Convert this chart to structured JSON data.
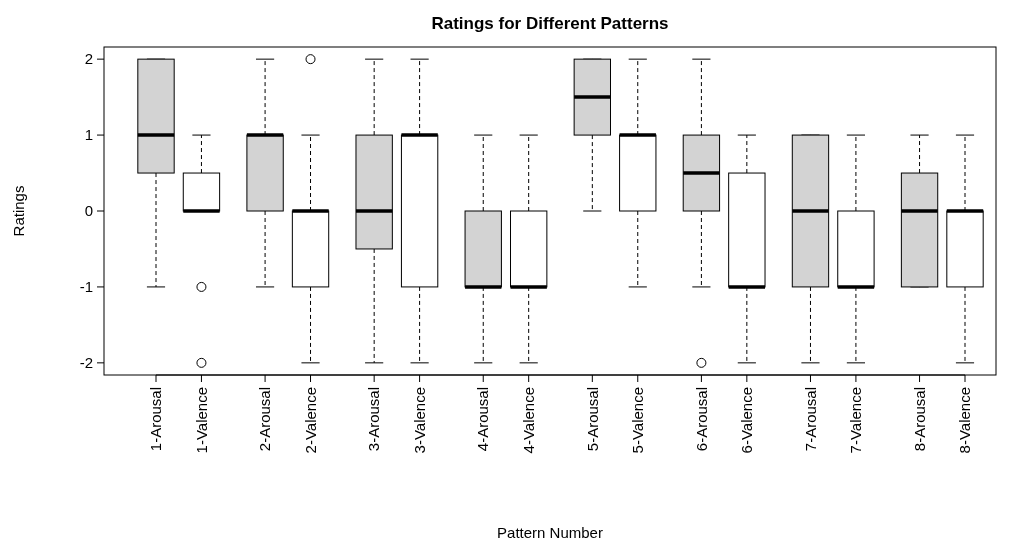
{
  "chart_data": {
    "type": "box",
    "title": "Ratings for Different Patterns",
    "xlabel": "Pattern Number",
    "ylabel": "Ratings",
    "categories": [
      "1-Arousal",
      "1-Valence",
      "2-Arousal",
      "2-Valence",
      "3-Arousal",
      "3-Valence",
      "4-Arousal",
      "4-Valence",
      "5-Arousal",
      "5-Valence",
      "6-Arousal",
      "6-Valence",
      "7-Arousal",
      "7-Valence",
      "8-Arousal",
      "8-Valence"
    ],
    "colors": [
      "#d3d3d3",
      "#ffffff",
      "#d3d3d3",
      "#ffffff",
      "#d3d3d3",
      "#ffffff",
      "#d3d3d3",
      "#ffffff",
      "#d3d3d3",
      "#ffffff",
      "#d3d3d3",
      "#ffffff",
      "#d3d3d3",
      "#ffffff",
      "#d3d3d3",
      "#ffffff"
    ],
    "boxes": [
      {
        "low": -1,
        "q1": 0.5,
        "median": 1,
        "q3": 2,
        "high": 2
      },
      {
        "low": 0,
        "q1": 0,
        "median": 0,
        "q3": 0.5,
        "high": 1,
        "outliers": [
          -1,
          -2
        ]
      },
      {
        "low": -1,
        "q1": 0,
        "median": 1,
        "q3": 1,
        "high": 2
      },
      {
        "low": -2,
        "q1": -1,
        "median": 0,
        "q3": 0,
        "high": 1,
        "outliers": [
          2
        ]
      },
      {
        "low": -2,
        "q1": -0.5,
        "median": 0,
        "q3": 1,
        "high": 2
      },
      {
        "low": -2,
        "q1": -1,
        "median": 1,
        "q3": 1,
        "high": 2
      },
      {
        "low": -2,
        "q1": -1,
        "median": -1,
        "q3": 0,
        "high": 1
      },
      {
        "low": -2,
        "q1": -1,
        "median": -1,
        "q3": 0,
        "high": 1
      },
      {
        "low": 0,
        "q1": 1,
        "median": 1.5,
        "q3": 2,
        "high": 2
      },
      {
        "low": -1,
        "q1": 0,
        "median": 1,
        "q3": 1,
        "high": 2
      },
      {
        "low": -1,
        "q1": 0,
        "median": 0.5,
        "q3": 1,
        "high": 2,
        "outliers": [
          -2
        ]
      },
      {
        "low": -2,
        "q1": -1,
        "median": -1,
        "q3": 0.5,
        "high": 1
      },
      {
        "low": -2,
        "q1": -1,
        "median": 0,
        "q3": 1,
        "high": 1
      },
      {
        "low": -2,
        "q1": -1,
        "median": -1,
        "q3": 0,
        "high": 1
      },
      {
        "low": -1,
        "q1": -1,
        "median": 0,
        "q3": 0.5,
        "high": 1
      },
      {
        "low": -2,
        "q1": -1,
        "median": 0,
        "q3": 0,
        "high": 1
      }
    ],
    "ylim": [
      -2.16,
      2.16
    ],
    "yticks": [
      -2,
      -1,
      0,
      1,
      2
    ],
    "grid": false
  }
}
